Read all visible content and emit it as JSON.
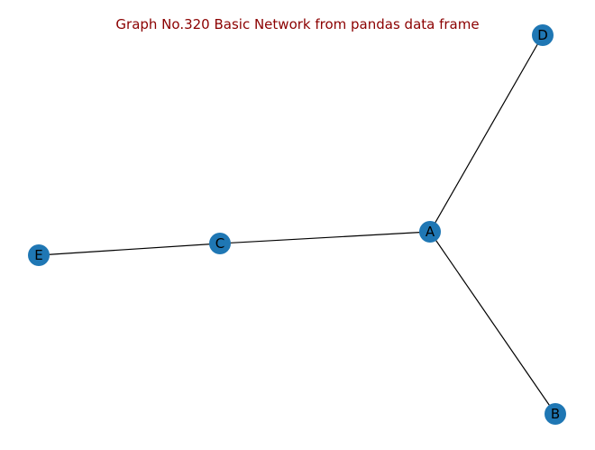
{
  "title": "Graph No.320 Basic Network from pandas data frame",
  "colors": {
    "title": "#8b0000",
    "node_fill": "#1f77b4",
    "edge": "#000000",
    "label": "#000000",
    "background": "#ffffff"
  },
  "graph": {
    "nodes": [
      {
        "id": "A",
        "label": "A"
      },
      {
        "id": "B",
        "label": "B"
      },
      {
        "id": "C",
        "label": "C"
      },
      {
        "id": "D",
        "label": "D"
      },
      {
        "id": "E",
        "label": "E"
      }
    ],
    "edges": [
      {
        "source": "A",
        "target": "D"
      },
      {
        "source": "A",
        "target": "B"
      },
      {
        "source": "A",
        "target": "C"
      },
      {
        "source": "C",
        "target": "E"
      }
    ]
  }
}
